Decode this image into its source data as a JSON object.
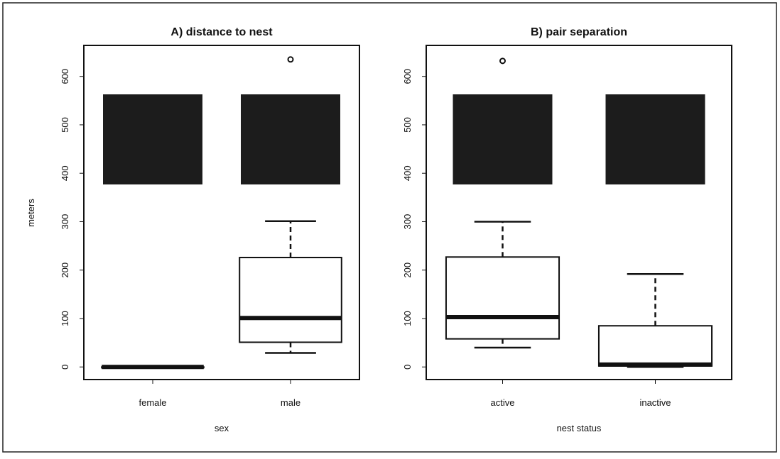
{
  "chart_data": [
    {
      "type": "box",
      "title": "A) distance to nest",
      "x_label": "sex",
      "y_label": "meters",
      "categories": [
        "female",
        "male"
      ],
      "min": [
        0,
        29
      ],
      "q1": [
        0,
        51
      ],
      "median": [
        0,
        101
      ],
      "q3": [
        0,
        226
      ],
      "max": [
        0,
        301
      ],
      "outliers": [
        [],
        [
          635
        ]
      ],
      "ylim": [
        -26,
        664
      ],
      "yticks": [
        0,
        100,
        200,
        300,
        400,
        500,
        600
      ]
    },
    {
      "type": "box",
      "title": "B) pair separation",
      "x_label": "nest status",
      "categories": [
        "active",
        "inactive"
      ],
      "min": [
        40,
        0
      ],
      "q1": [
        58,
        2
      ],
      "median": [
        103,
        5
      ],
      "q3": [
        227,
        85
      ],
      "max": [
        300,
        192
      ],
      "outliers": [
        [
          632
        ],
        []
      ],
      "ylim": [
        -26,
        664
      ],
      "yticks": [
        0,
        100,
        200,
        300,
        400,
        500,
        600
      ]
    }
  ]
}
